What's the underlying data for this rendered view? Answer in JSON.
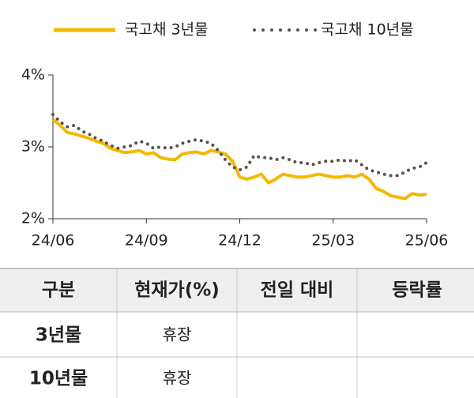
{
  "chart_data": {
    "type": "line",
    "categories": [
      "24/06",
      null,
      null,
      null,
      null,
      null,
      null,
      null,
      null,
      null,
      null,
      null,
      null,
      "24/09",
      null,
      null,
      null,
      null,
      null,
      null,
      null,
      null,
      null,
      null,
      null,
      null,
      "24/12",
      null,
      null,
      null,
      null,
      null,
      null,
      null,
      null,
      null,
      null,
      null,
      null,
      "25/03",
      null,
      null,
      null,
      null,
      null,
      null,
      null,
      null,
      null,
      null,
      null,
      null,
      "25/06"
    ],
    "series": [
      {
        "name": "국고채 3년물",
        "color": "#f5b800",
        "style": "solid",
        "values": [
          3.38,
          3.3,
          3.2,
          3.18,
          3.15,
          3.12,
          3.08,
          3.05,
          2.98,
          2.95,
          2.92,
          2.93,
          2.95,
          2.9,
          2.92,
          2.85,
          2.83,
          2.82,
          2.9,
          2.92,
          2.93,
          2.9,
          2.95,
          2.93,
          2.9,
          2.8,
          2.58,
          2.55,
          2.58,
          2.62,
          2.5,
          2.55,
          2.62,
          2.6,
          2.58,
          2.58,
          2.6,
          2.62,
          2.6,
          2.58,
          2.58,
          2.6,
          2.58,
          2.62,
          2.55,
          2.42,
          2.38,
          2.32,
          2.3,
          2.28,
          2.35,
          2.33,
          2.34
        ]
      },
      {
        "name": "국고채 10년물",
        "color": "#5a5147",
        "style": "dotted",
        "values": [
          3.45,
          3.35,
          3.28,
          3.3,
          3.22,
          3.18,
          3.12,
          3.08,
          3.02,
          2.98,
          3.0,
          3.02,
          3.08,
          3.05,
          2.98,
          3.0,
          2.98,
          3.0,
          3.05,
          3.08,
          3.1,
          3.08,
          3.05,
          2.95,
          2.82,
          2.72,
          2.68,
          2.72,
          2.88,
          2.85,
          2.85,
          2.82,
          2.85,
          2.82,
          2.78,
          2.78,
          2.75,
          2.78,
          2.8,
          2.8,
          2.82,
          2.8,
          2.82,
          2.75,
          2.68,
          2.65,
          2.62,
          2.6,
          2.6,
          2.65,
          2.7,
          2.72,
          2.78
        ]
      }
    ],
    "ylim": [
      2,
      4
    ],
    "yticks": [
      {
        "value": 2,
        "label": "2%"
      },
      {
        "value": 3,
        "label": "3%"
      },
      {
        "value": 4,
        "label": "4%"
      }
    ],
    "legend": "top"
  },
  "table": {
    "header": [
      "구분",
      "현재가(%)",
      "전일 대비",
      "등락률"
    ],
    "rows": [
      {
        "name": "3년물",
        "price": "휴장"
      },
      {
        "name": "10년물",
        "price": "휴장"
      }
    ]
  }
}
